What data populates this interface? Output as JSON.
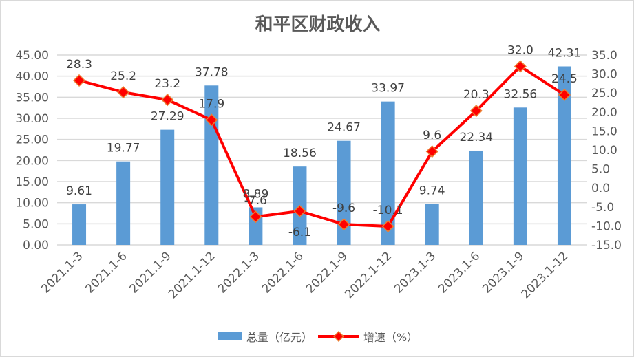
{
  "chart_data": {
    "type": "bar+line",
    "title": "和平区财政收入",
    "categories": [
      "2021.1-3",
      "2021.1-6",
      "2021.1-9",
      "2021.1-12",
      "2022.1-3",
      "2022.1-6",
      "2022.1-9",
      "2022.1-12",
      "2023.1-3",
      "2023.1-6",
      "2023.1-9",
      "2023.1-12"
    ],
    "series": [
      {
        "name": "总量（亿元）",
        "type": "bar",
        "axis": "left",
        "color": "#5b9bd5",
        "values": [
          9.61,
          19.77,
          27.29,
          37.78,
          8.89,
          18.56,
          24.67,
          33.97,
          9.74,
          22.34,
          32.56,
          42.31
        ]
      },
      {
        "name": "增速（%）",
        "type": "line",
        "axis": "right",
        "color": "#ff0000",
        "marker": "diamond",
        "values": [
          28.3,
          25.2,
          23.2,
          17.9,
          -7.6,
          -6.1,
          -9.6,
          -10.1,
          9.6,
          20.3,
          32.0,
          24.5
        ]
      }
    ],
    "left_axis": {
      "min": 0,
      "max": 45,
      "step": 5,
      "ticks": [
        "0.00",
        "5.00",
        "10.00",
        "15.00",
        "20.00",
        "25.00",
        "30.00",
        "35.00",
        "40.00",
        "45.00"
      ]
    },
    "right_axis": {
      "min": -15,
      "max": 35,
      "step": 5,
      "ticks": [
        "-15.0",
        "-10.0",
        "-5.0",
        "0.0",
        "5.0",
        "10.0",
        "15.0",
        "20.0",
        "25.0",
        "30.0",
        "35.0"
      ]
    },
    "grid": true,
    "legend_position": "bottom"
  },
  "legend": {
    "bar_label": "总量（亿元）",
    "line_label": "增速（%）"
  }
}
